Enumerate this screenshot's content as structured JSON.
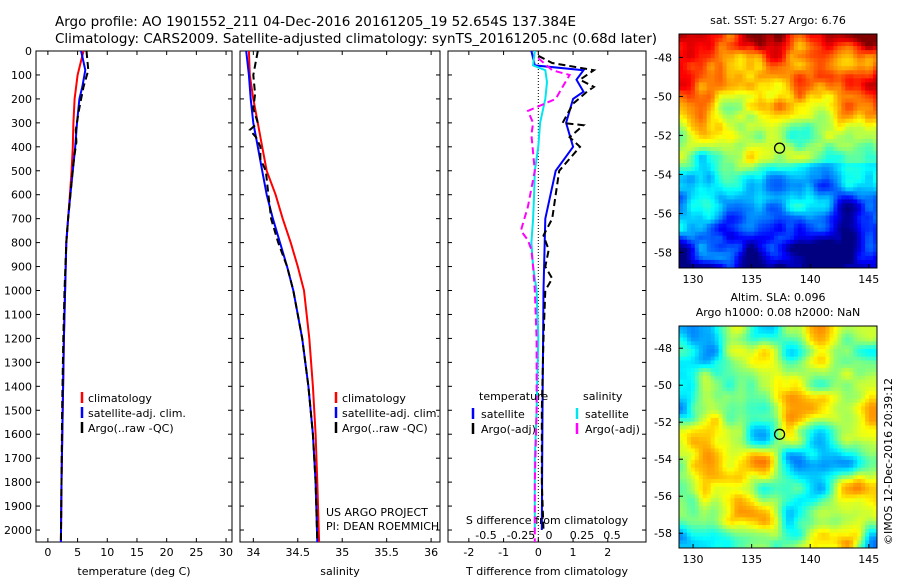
{
  "header": {
    "line1": "Argo profile: AO 1901552_211 04-Dec-2016 20161205_19 52.654S 137.384E",
    "line2": "Climatology: CARS2009. Satellite-adjusted climatology: synTS_20161205.nc (0.68d later)"
  },
  "colors": {
    "clim": "#ff0000",
    "sat": "#0000ff",
    "argo": "#000000",
    "sal_sat": "#00e5ee",
    "sal_argo": "#ff00ff"
  },
  "chart_data": [
    {
      "type": "line",
      "name": "temperature",
      "xlabel": "temperature (deg C)",
      "xlim": [
        -2,
        31
      ],
      "ylim": [
        2050,
        0
      ],
      "xticks": [
        0,
        5,
        10,
        15,
        20,
        25,
        30
      ],
      "yticks": [
        0,
        100,
        200,
        300,
        400,
        500,
        600,
        700,
        800,
        900,
        1000,
        1100,
        1200,
        1300,
        1400,
        1500,
        1600,
        1700,
        1800,
        1900,
        2000
      ],
      "legend": [
        "climatology",
        "satellite-adj. clim.",
        "Argo(..raw -QC)"
      ],
      "series": [
        {
          "key": "clim",
          "style": "solid",
          "points": [
            [
              6,
              0
            ],
            [
              5,
              100
            ],
            [
              4.5,
              200
            ],
            [
              4.3,
              300
            ],
            [
              4.2,
              400
            ],
            [
              4.0,
              500
            ],
            [
              3.7,
              600
            ],
            [
              3.4,
              700
            ],
            [
              3.1,
              800
            ],
            [
              2.9,
              1000
            ],
            [
              2.7,
              1200
            ],
            [
              2.5,
              1500
            ],
            [
              2.3,
              1800
            ],
            [
              2.2,
              2050
            ]
          ]
        },
        {
          "key": "sat",
          "style": "solid",
          "points": [
            [
              5.6,
              0
            ],
            [
              6.3,
              80
            ],
            [
              5.8,
              150
            ],
            [
              5.3,
              200
            ],
            [
              4.9,
              300
            ],
            [
              4.6,
              400
            ],
            [
              4.2,
              500
            ],
            [
              3.8,
              600
            ],
            [
              3.4,
              700
            ],
            [
              3.1,
              800
            ],
            [
              2.9,
              1000
            ],
            [
              2.7,
              1200
            ],
            [
              2.5,
              1500
            ],
            [
              2.3,
              1800
            ],
            [
              2.2,
              2050
            ]
          ]
        },
        {
          "key": "argo",
          "style": "dash",
          "points": [
            [
              6.5,
              0
            ],
            [
              6.8,
              80
            ],
            [
              6.0,
              150
            ],
            [
              5.2,
              250
            ],
            [
              4.7,
              330
            ],
            [
              4.8,
              380
            ],
            [
              4.4,
              450
            ],
            [
              4.1,
              520
            ],
            [
              3.8,
              600
            ],
            [
              3.4,
              700
            ],
            [
              3.1,
              800
            ],
            [
              2.8,
              1000
            ],
            [
              2.6,
              1200
            ],
            [
              2.4,
              1500
            ],
            [
              2.3,
              1800
            ],
            [
              2.2,
              2050
            ]
          ]
        }
      ]
    },
    {
      "type": "line",
      "name": "salinity",
      "xlabel": "salinity",
      "xlim": [
        33.85,
        36.1
      ],
      "ylim": [
        2050,
        0
      ],
      "xticks": [
        34,
        34.5,
        35,
        35.5,
        36
      ],
      "legend": [
        "climatology",
        "satellite-adj. clim.",
        "Argo(..raw -QC)"
      ],
      "annotation": [
        "US ARGO PROJECT",
        "PI: DEAN ROEMMICH"
      ],
      "series": [
        {
          "key": "clim",
          "style": "solid",
          "points": [
            [
              33.95,
              0
            ],
            [
              33.96,
              100
            ],
            [
              34.0,
              200
            ],
            [
              34.05,
              300
            ],
            [
              34.1,
              400
            ],
            [
              34.15,
              500
            ],
            [
              34.25,
              600
            ],
            [
              34.33,
              700
            ],
            [
              34.42,
              800
            ],
            [
              34.5,
              900
            ],
            [
              34.57,
              1000
            ],
            [
              34.63,
              1200
            ],
            [
              34.67,
              1400
            ],
            [
              34.7,
              1600
            ],
            [
              34.72,
              1800
            ],
            [
              34.74,
              2050
            ]
          ]
        },
        {
          "key": "sat",
          "style": "solid",
          "points": [
            [
              33.92,
              0
            ],
            [
              33.95,
              100
            ],
            [
              33.97,
              200
            ],
            [
              34.0,
              300
            ],
            [
              34.05,
              400
            ],
            [
              34.1,
              500
            ],
            [
              34.15,
              600
            ],
            [
              34.22,
              700
            ],
            [
              34.3,
              800
            ],
            [
              34.38,
              900
            ],
            [
              34.45,
              1000
            ],
            [
              34.55,
              1200
            ],
            [
              34.62,
              1400
            ],
            [
              34.67,
              1600
            ],
            [
              34.7,
              1800
            ],
            [
              34.72,
              2050
            ]
          ]
        },
        {
          "key": "argo",
          "style": "dash",
          "points": [
            [
              34.05,
              0
            ],
            [
              34.0,
              100
            ],
            [
              34.02,
              180
            ],
            [
              34.0,
              240
            ],
            [
              34.05,
              300
            ],
            [
              33.96,
              330
            ],
            [
              34.03,
              360
            ],
            [
              34.08,
              400
            ],
            [
              34.08,
              450
            ],
            [
              34.14,
              500
            ],
            [
              34.17,
              600
            ],
            [
              34.2,
              700
            ],
            [
              34.28,
              800
            ],
            [
              34.38,
              900
            ],
            [
              34.45,
              1000
            ],
            [
              34.55,
              1200
            ],
            [
              34.62,
              1400
            ],
            [
              34.67,
              1600
            ],
            [
              34.7,
              1800
            ],
            [
              34.72,
              2050
            ]
          ]
        }
      ]
    },
    {
      "type": "line",
      "name": "differences",
      "xlabel": "T difference from climatology",
      "xlabel2": "S difference from climatology",
      "xlim": [
        -2.6,
        3.1
      ],
      "ylim": [
        2050,
        0
      ],
      "xticks": [
        -2,
        -1,
        0,
        1,
        2
      ],
      "sticks": [
        "-0.5",
        "-0.25",
        "0",
        "0.25",
        "0.5"
      ],
      "legend_header": [
        "temperature",
        "salinity"
      ],
      "legend": [
        "satellite",
        "Argo(-adj)",
        "satellite",
        "Argo(-adj)"
      ],
      "series": [
        {
          "key": "sat",
          "style": "solid",
          "points": [
            [
              -0.2,
              0
            ],
            [
              -0.1,
              60
            ],
            [
              1.3,
              80
            ],
            [
              1.1,
              120
            ],
            [
              1.3,
              170
            ],
            [
              1.0,
              200
            ],
            [
              0.8,
              300
            ],
            [
              1.0,
              400
            ],
            [
              0.5,
              500
            ],
            [
              0.35,
              600
            ],
            [
              0.2,
              700
            ],
            [
              0.15,
              1000
            ],
            [
              0.12,
              1500
            ],
            [
              0.1,
              2000
            ]
          ]
        },
        {
          "key": "argo",
          "style": "dash",
          "points": [
            [
              0.0,
              20
            ],
            [
              0.4,
              50
            ],
            [
              1.6,
              80
            ],
            [
              1.2,
              120
            ],
            [
              1.6,
              150
            ],
            [
              1.4,
              170
            ],
            [
              1.0,
              220
            ],
            [
              0.7,
              300
            ],
            [
              1.3,
              310
            ],
            [
              0.9,
              360
            ],
            [
              1.2,
              400
            ],
            [
              0.6,
              500
            ],
            [
              0.5,
              600
            ],
            [
              0.4,
              700
            ],
            [
              0.15,
              770
            ],
            [
              0.3,
              830
            ],
            [
              0.2,
              900
            ],
            [
              0.4,
              950
            ],
            [
              0.2,
              1000
            ],
            [
              0.15,
              1200
            ],
            [
              0.1,
              1500
            ],
            [
              0.1,
              1800
            ],
            [
              0.15,
              2000
            ]
          ]
        },
        {
          "key": "sal_sat",
          "style": "solid",
          "points": [
            [
              -0.1,
              0
            ],
            [
              -0.15,
              60
            ],
            [
              0.2,
              80
            ],
            [
              0.25,
              130
            ],
            [
              0.2,
              200
            ],
            [
              0.05,
              300
            ],
            [
              0.0,
              400
            ],
            [
              -0.1,
              500
            ],
            [
              -0.12,
              600
            ],
            [
              -0.15,
              700
            ],
            [
              -0.2,
              800
            ],
            [
              -0.15,
              900
            ],
            [
              -0.05,
              1000
            ],
            [
              0.0,
              1200
            ],
            [
              -0.05,
              1500
            ],
            [
              -0.1,
              1700
            ],
            [
              -0.1,
              2000
            ]
          ]
        },
        {
          "key": "sal_argo",
          "style": "dash",
          "points": [
            [
              0.0,
              30
            ],
            [
              0.4,
              80
            ],
            [
              0.9,
              100
            ],
            [
              0.7,
              150
            ],
            [
              0.5,
              200
            ],
            [
              -0.3,
              250
            ],
            [
              -0.15,
              300
            ],
            [
              -0.2,
              350
            ],
            [
              -0.1,
              500
            ],
            [
              -0.3,
              650
            ],
            [
              -0.5,
              750
            ],
            [
              -0.3,
              790
            ],
            [
              -0.2,
              830
            ],
            [
              -0.15,
              900
            ],
            [
              -0.1,
              1000
            ],
            [
              -0.05,
              1200
            ],
            [
              -0.05,
              1500
            ],
            [
              -0.1,
              1800
            ],
            [
              -0.1,
              2050
            ]
          ]
        }
      ]
    },
    {
      "type": "heatmap",
      "name": "sst_map",
      "title": "sat. SST: 5.27 Argo: 6.76",
      "xlim": [
        128.8,
        145.7
      ],
      "ylim": [
        -58.8,
        -46.8
      ],
      "xticks": [
        130,
        135,
        140,
        145
      ],
      "yticks": [
        -48,
        -50,
        -52,
        -54,
        -56,
        -58
      ],
      "marker": [
        137.384,
        -52.654
      ]
    },
    {
      "type": "heatmap",
      "name": "sla_map",
      "title": "Altim. SLA: 0.096",
      "subtitle": "Argo h1000: 0.08 h2000: NaN",
      "xlim": [
        128.8,
        145.7
      ],
      "ylim": [
        -58.8,
        -46.8
      ],
      "xticks": [
        130,
        135,
        140,
        145
      ],
      "yticks": [
        -48,
        -50,
        -52,
        -54,
        -56,
        -58
      ],
      "marker": [
        137.384,
        -52.654
      ]
    }
  ],
  "credit": "©IMOS 12-Dec-2016 20:39:12"
}
